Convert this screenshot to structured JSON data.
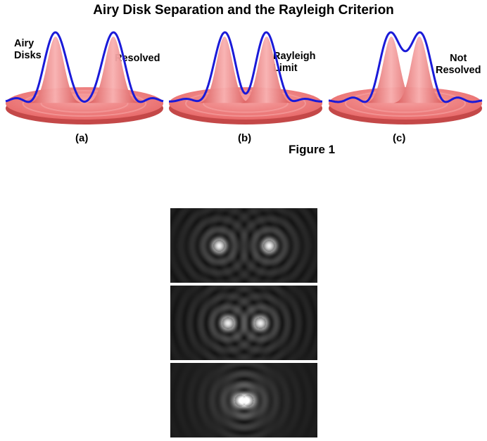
{
  "title": "Airy Disk Separation and the Rayleigh Criterion",
  "panels": [
    {
      "id": "a",
      "caption": "(a)",
      "label": "Resolved",
      "side_label": "Airy\nDisks"
    },
    {
      "id": "b",
      "caption": "(b)",
      "label": "Rayleigh\nLimit"
    },
    {
      "id": "c",
      "caption": "(c)",
      "label": "Not\nResolved"
    }
  ],
  "figure_label": "Figure 1",
  "colors": {
    "disk": "#e86a6a",
    "disk_light": "#f6a3a3",
    "profile_line": "#1a1ad8",
    "background": "#ffffff"
  }
}
